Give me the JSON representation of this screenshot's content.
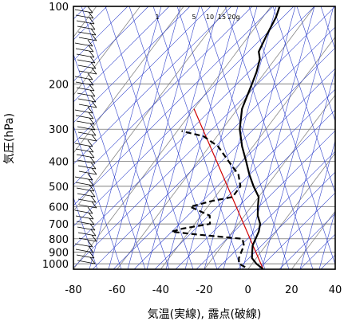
{
  "chart_data": {
    "type": "line",
    "chart_kind": "skew-T log-p sounding diagram",
    "title": "",
    "xlabel": "気温(実線), 露点(破線)",
    "ylabel": "気圧(hPa)",
    "x_scale": "skewed temperature (deg C)",
    "y_scale": "log pressure (hPa), inverted",
    "xlim": [
      -80,
      40
    ],
    "ylim": [
      1050,
      100
    ],
    "x_ticks": [
      "-80",
      "-60",
      "-40",
      "-20",
      "0",
      "20",
      "40"
    ],
    "y_ticks": [
      "100",
      "200",
      "300",
      "400",
      "500",
      "600",
      "700",
      "800",
      "900",
      "1000"
    ],
    "grid": true,
    "mixing_ratio_labels": [
      "1",
      "5",
      "10",
      "15",
      "20g"
    ],
    "series": [
      {
        "style": "solid",
        "color": "#000000",
        "points": [
          [
            1050,
            7
          ],
          [
            1000,
            2
          ],
          [
            950,
            -2
          ],
          [
            900,
            -4
          ],
          [
            850,
            -6
          ],
          [
            800,
            -7
          ],
          [
            750,
            -8
          ],
          [
            700,
            -10
          ],
          [
            650,
            -14
          ],
          [
            600,
            -17
          ],
          [
            550,
            -20
          ],
          [
            500,
            -26
          ],
          [
            450,
            -32
          ],
          [
            400,
            -38
          ],
          [
            350,
            -45
          ],
          [
            300,
            -52
          ],
          [
            250,
            -58
          ],
          [
            200,
            -62
          ],
          [
            180,
            -64
          ],
          [
            160,
            -67
          ],
          [
            150,
            -70
          ],
          [
            130,
            -72
          ],
          [
            110,
            -74
          ],
          [
            100,
            -76
          ]
        ]
      },
      {
        "style": "dashed",
        "color": "#000000",
        "points": [
          [
            1030,
            -2
          ],
          [
            1000,
            -6
          ],
          [
            950,
            -8
          ],
          [
            900,
            -9
          ],
          [
            850,
            -10
          ],
          [
            800,
            -13
          ],
          [
            790,
            -20
          ],
          [
            770,
            -35
          ],
          [
            750,
            -48
          ],
          [
            730,
            -44
          ],
          [
            700,
            -33
          ],
          [
            650,
            -36
          ],
          [
            600,
            -48
          ],
          [
            570,
            -40
          ],
          [
            550,
            -32
          ],
          [
            500,
            -32
          ],
          [
            450,
            -37
          ],
          [
            400,
            -46
          ],
          [
            350,
            -56
          ],
          [
            320,
            -66
          ],
          [
            305,
            -78
          ]
        ]
      }
    ],
    "reference_line": {
      "color": "#d00000",
      "points": [
        [
          1050,
          7
        ],
        [
          250,
          -80
        ]
      ]
    },
    "helper_colors": {
      "isotherm": "#888888",
      "adiabat": "#3344cc",
      "wind_barb": "#000000"
    }
  }
}
